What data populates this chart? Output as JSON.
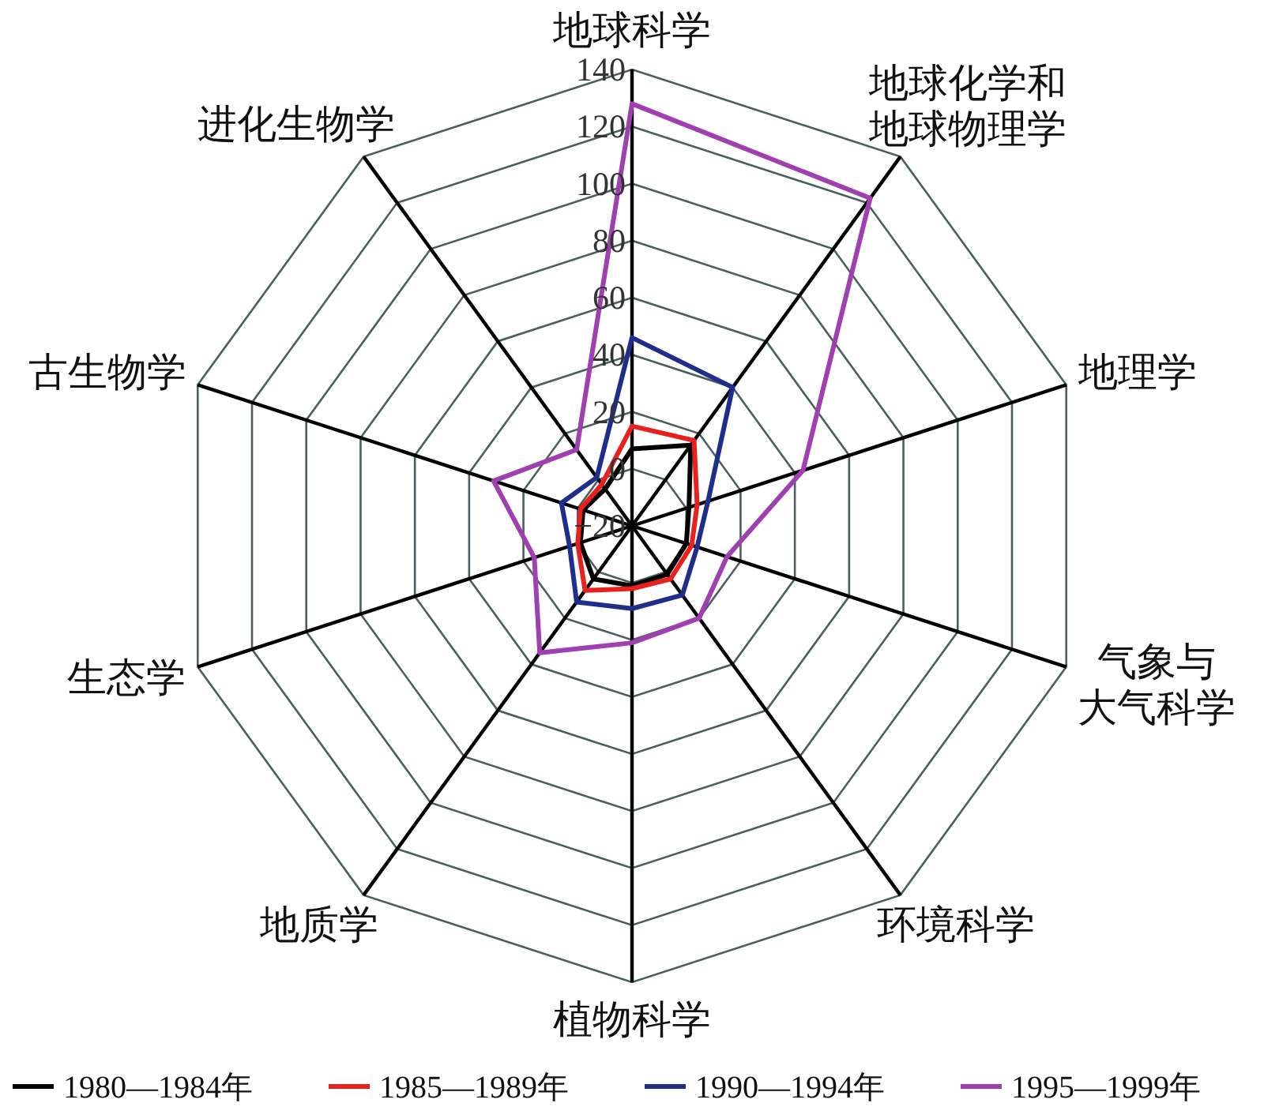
{
  "chart_data": {
    "type": "radar",
    "categories": [
      "地球科学",
      "地球化学和地球物理学",
      "地理学",
      "气象与大气科学",
      "环境科学",
      "植物科学",
      "地质学",
      "生态学",
      "古生物学",
      "进化生物学"
    ],
    "ylim": [
      -20,
      140
    ],
    "yticks": [
      {
        "value": -20,
        "label": "−20"
      },
      0,
      20,
      40,
      60,
      80,
      100,
      120,
      140
    ],
    "legend": "bottom",
    "grid": true,
    "series": [
      {
        "name": "1980—1984年",
        "color": "#000000",
        "values": [
          7,
          15,
          1,
          0,
          1,
          1,
          3,
          -1,
          -2,
          -4
        ]
      },
      {
        "name": "1985—1989年",
        "color": "#e8201e",
        "values": [
          15,
          17,
          4,
          2,
          3,
          2,
          8,
          0,
          -1,
          -2
        ]
      },
      {
        "name": "1990—1994年",
        "color": "#1f2e8c",
        "values": [
          46,
          40,
          8,
          4,
          10,
          9,
          13,
          3,
          6,
          1
        ]
      },
      {
        "name": "1995—1999年",
        "color": "#a040b0",
        "values": [
          128,
          122,
          43,
          15,
          20,
          21,
          35,
          16,
          31,
          13
        ]
      }
    ]
  }
}
